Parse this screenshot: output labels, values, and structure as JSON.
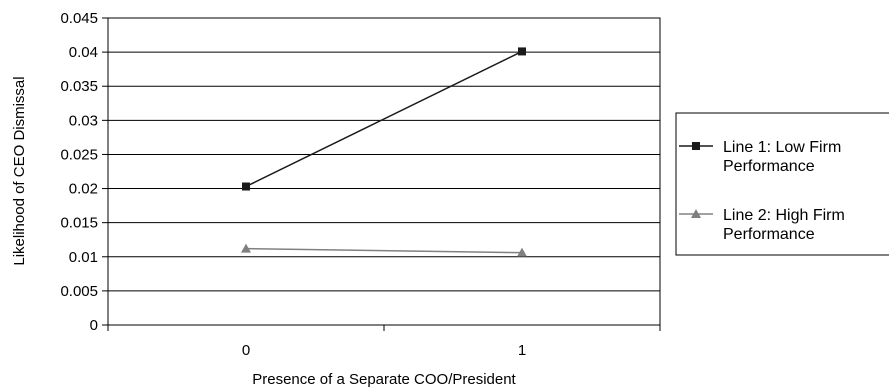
{
  "chart_data": {
    "type": "line",
    "categories": [
      "0",
      "1"
    ],
    "xlabel": "Presence of a Separate COO/President",
    "ylabel": "Likelihood of CEO Dismissal",
    "ylim": [
      0,
      0.045
    ],
    "yticks": [
      "0",
      "0.005",
      "0.01",
      "0.015",
      "0.02",
      "0.025",
      "0.03",
      "0.035",
      "0.04",
      "0.045"
    ],
    "grid": "horizontal",
    "legend_position": "right",
    "series": [
      {
        "name_lines": [
          "Line 1: Low Firm",
          "Performance"
        ],
        "values": [
          0.0203,
          0.0401
        ],
        "marker": "square",
        "color": "#1a1a1a"
      },
      {
        "name_lines": [
          "Line 2: High Firm",
          "Performance"
        ],
        "values": [
          0.0112,
          0.0106
        ],
        "marker": "triangle",
        "color": "#808080"
      }
    ]
  }
}
